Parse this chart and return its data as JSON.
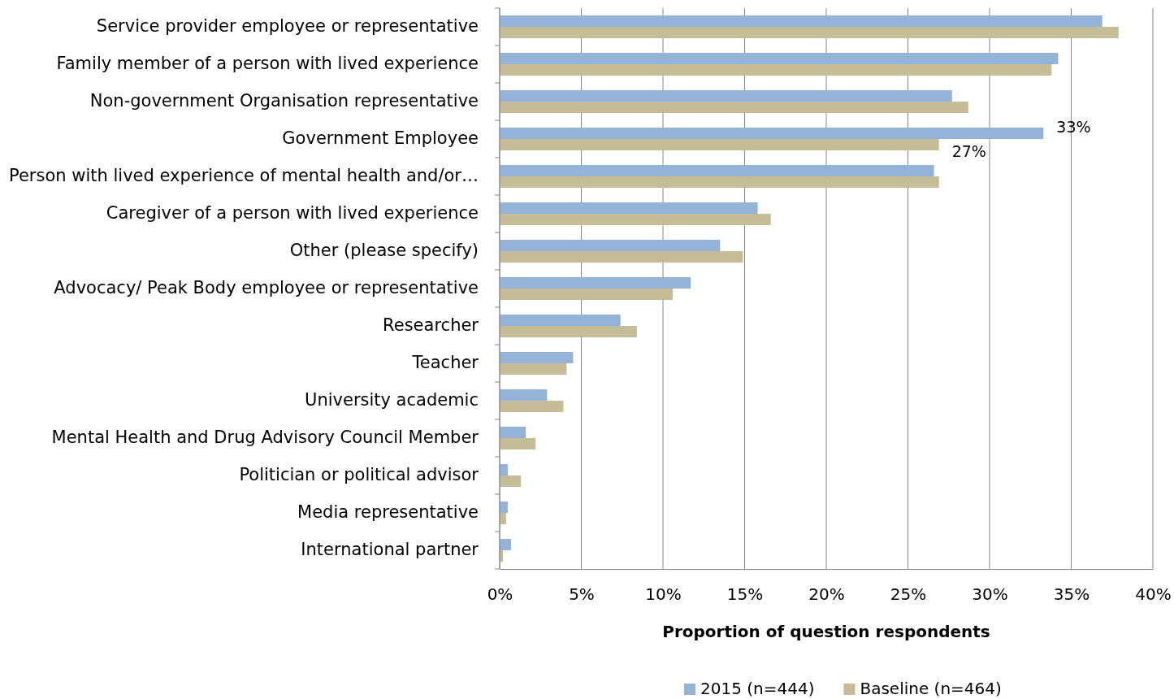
{
  "chart_data": {
    "type": "bar",
    "orientation": "horizontal",
    "xlabel": "Proportion of question respondents",
    "categories": [
      "Service provider employee or representative",
      "Family member of a person with lived experience",
      "Non-government Organisation representative",
      "Government Employee",
      "Person with lived experience of mental health and/or…",
      "Caregiver of a person with lived experience",
      "Other (please specify)",
      "Advocacy/ Peak Body employee or representative",
      "Researcher",
      "Teacher",
      "University academic",
      "Mental Health and Drug Advisory Council Member",
      "Politician or political advisor",
      "Media representative",
      "International partner"
    ],
    "series": [
      {
        "name": "2015 (n=444)",
        "color": "#95b3d7",
        "values": [
          36.9,
          34.2,
          27.7,
          33.3,
          26.6,
          15.8,
          13.5,
          11.7,
          7.4,
          4.5,
          2.9,
          1.6,
          0.5,
          0.5,
          0.7
        ],
        "value_labels": [
          null,
          null,
          null,
          "33%",
          null,
          null,
          null,
          null,
          null,
          null,
          null,
          null,
          null,
          null,
          null
        ]
      },
      {
        "name": "Baseline (n=464)",
        "color": "#c4bd97",
        "values": [
          37.9,
          33.8,
          28.7,
          26.9,
          26.9,
          16.6,
          14.9,
          10.6,
          8.4,
          4.1,
          3.9,
          2.2,
          1.3,
          0.4,
          0.2
        ],
        "value_labels": [
          null,
          null,
          null,
          "27%",
          null,
          null,
          null,
          null,
          null,
          null,
          null,
          null,
          null,
          null,
          null
        ]
      }
    ],
    "xlim": [
      0,
      40
    ],
    "xticks": [
      {
        "value": 0,
        "label": "0%"
      },
      {
        "value": 5,
        "label": "5%"
      },
      {
        "value": 10,
        "label": "10%"
      },
      {
        "value": 15,
        "label": "15%"
      },
      {
        "value": 20,
        "label": "20%"
      },
      {
        "value": 25,
        "label": "25%"
      },
      {
        "value": 30,
        "label": "30%"
      },
      {
        "value": 35,
        "label": "35%"
      },
      {
        "value": 40,
        "label": "40%"
      }
    ],
    "grid": "x",
    "legend": "bottom"
  }
}
